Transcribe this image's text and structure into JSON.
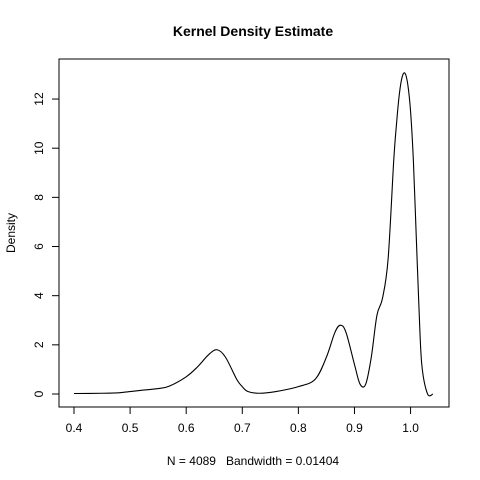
{
  "chart_data": {
    "type": "line",
    "title": "Kernel Density Estimate",
    "xlabel": "N = 4089   Bandwidth = 0.01404",
    "ylabel": "Density",
    "xlim": [
      0.4,
      1.04
    ],
    "ylim": [
      0,
      13.1
    ],
    "xticks": [
      0.4,
      0.5,
      0.6,
      0.7,
      0.8,
      0.9,
      1.0
    ],
    "xtick_labels": [
      "0.4",
      "0.5",
      "0.6",
      "0.7",
      "0.8",
      "0.9",
      "1.0"
    ],
    "yticks": [
      0,
      2,
      4,
      6,
      8,
      10,
      12
    ],
    "ytick_labels": [
      "0",
      "2",
      "4",
      "6",
      "8",
      "10",
      "12"
    ],
    "grid": false,
    "series": [
      {
        "x": [
          0.4,
          0.45,
          0.48,
          0.5,
          0.52,
          0.55,
          0.57,
          0.6,
          0.62,
          0.64,
          0.655,
          0.67,
          0.69,
          0.7,
          0.71,
          0.73,
          0.76,
          0.8,
          0.83,
          0.85,
          0.865,
          0.875,
          0.885,
          0.9,
          0.91,
          0.92,
          0.93,
          0.94,
          0.95,
          0.96,
          0.97,
          0.975,
          0.98,
          0.985,
          0.99,
          0.995,
          1.0,
          1.005,
          1.01,
          1.015,
          1.02,
          1.03,
          1.04
        ],
        "y": [
          0.02,
          0.03,
          0.05,
          0.1,
          0.15,
          0.22,
          0.32,
          0.7,
          1.1,
          1.6,
          1.8,
          1.5,
          0.6,
          0.3,
          0.1,
          0.03,
          0.1,
          0.3,
          0.6,
          1.5,
          2.5,
          2.8,
          2.5,
          1.2,
          0.4,
          0.4,
          1.5,
          3.2,
          3.9,
          5.5,
          9.5,
          11.0,
          12.2,
          12.9,
          13.05,
          12.6,
          11.5,
          9.5,
          6.5,
          3.5,
          1.2,
          0.02,
          0.0
        ]
      }
    ]
  }
}
